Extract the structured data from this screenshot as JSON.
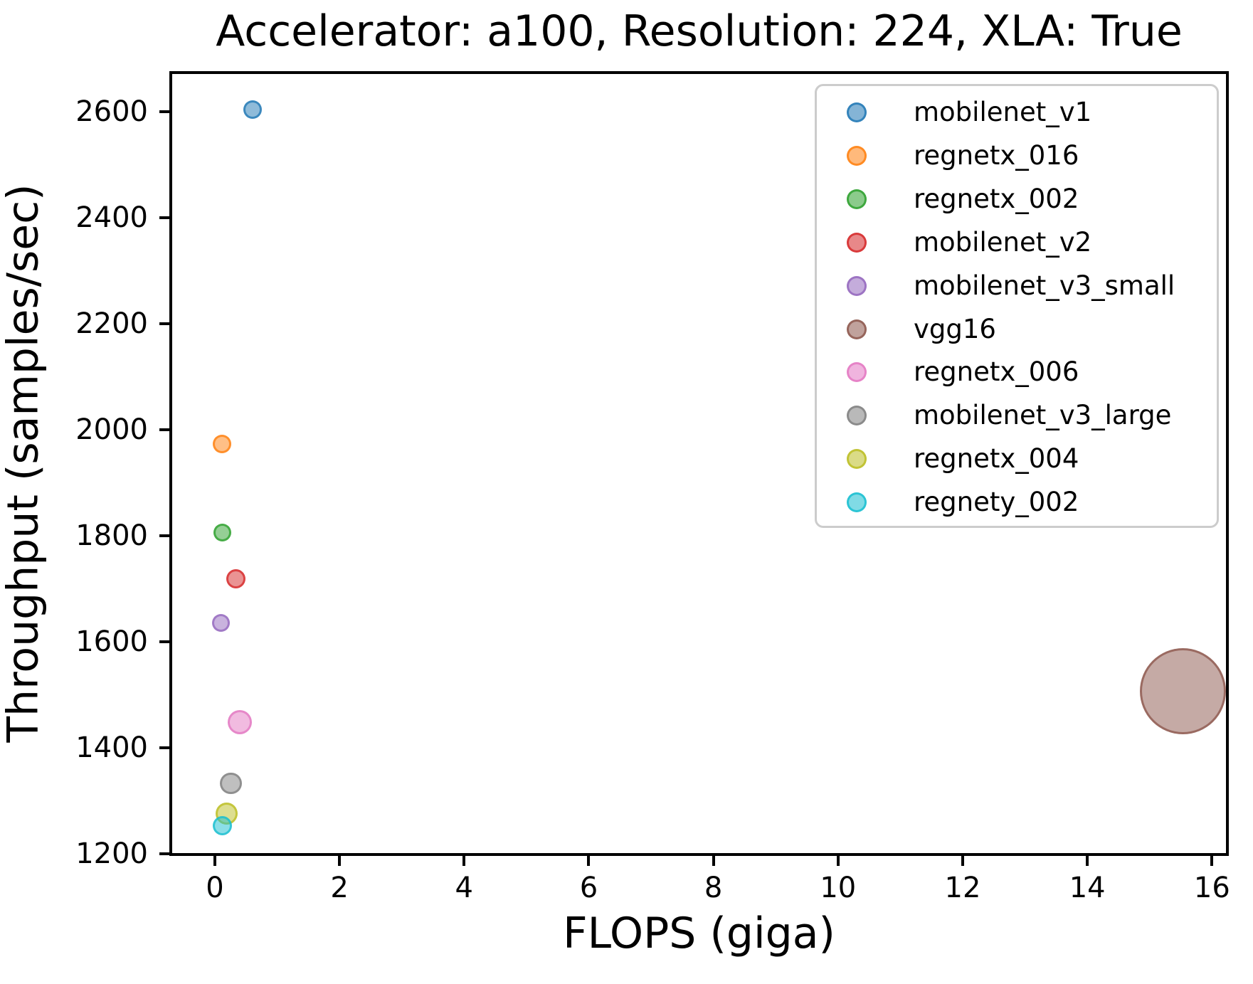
{
  "chart_data": {
    "type": "scatter",
    "title": "Accelerator: a100, Resolution: 224, XLA: True",
    "xlabel": "FLOPS (giga)",
    "ylabel": "Throughput (samples/sec)",
    "xlim": [
      -0.73,
      16.27
    ],
    "ylim": [
      1196,
      2676
    ],
    "x_ticks": [
      0,
      2,
      4,
      6,
      8,
      10,
      12,
      14,
      16
    ],
    "y_ticks": [
      1200,
      1400,
      1600,
      1800,
      2000,
      2200,
      2400,
      2600
    ],
    "grid": false,
    "legend_position": "upper right",
    "style": {
      "fill_alpha": 0.5,
      "edge_alpha": 0.75,
      "legend_fill_alpha": 0.55,
      "legend_edge_alpha": 0.8
    },
    "series": [
      {
        "name": "mobilenet_v1",
        "x": 0.57,
        "y": 2607,
        "radius_px": 10,
        "color": "#1f77b4"
      },
      {
        "name": "regnetx_016",
        "x": 0.08,
        "y": 1977,
        "radius_px": 10,
        "color": "#ff7f0e"
      },
      {
        "name": "regnetx_002",
        "x": 0.09,
        "y": 1810,
        "radius_px": 9.5,
        "color": "#2ca02c"
      },
      {
        "name": "mobilenet_v2",
        "x": 0.3,
        "y": 1722,
        "radius_px": 10.5,
        "color": "#d62728"
      },
      {
        "name": "mobilenet_v3_small",
        "x": 0.06,
        "y": 1640,
        "radius_px": 9.5,
        "color": "#9467bd"
      },
      {
        "name": "vgg16",
        "x": 15.5,
        "y": 1510,
        "radius_px": 57.5,
        "color": "#8c564b"
      },
      {
        "name": "regnetx_006",
        "x": 0.37,
        "y": 1452,
        "radius_px": 14,
        "color": "#e377c2"
      },
      {
        "name": "mobilenet_v3_large",
        "x": 0.22,
        "y": 1337,
        "radius_px": 12.3,
        "color": "#7f7f7f"
      },
      {
        "name": "regnetx_004",
        "x": 0.16,
        "y": 1280,
        "radius_px": 12.5,
        "color": "#bcbd22"
      },
      {
        "name": "regnety_002",
        "x": 0.09,
        "y": 1257,
        "radius_px": 10.5,
        "color": "#17becf"
      }
    ]
  }
}
